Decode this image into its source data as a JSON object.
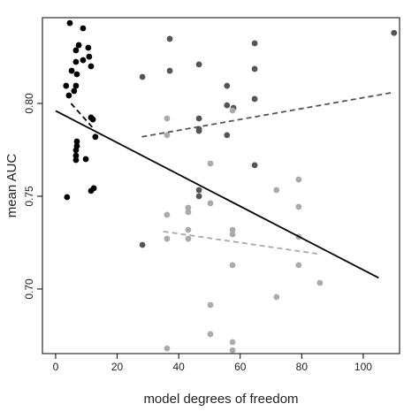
{
  "chart_data": {
    "type": "scatter",
    "x_label": "model degrees of freedom",
    "y_label": "mean AUC",
    "xlim": [
      -4.3,
      111.8
    ],
    "ylim": [
      0.6652,
      0.8462
    ],
    "xticks": [
      0,
      20,
      40,
      60,
      80,
      100
    ],
    "yticks": [
      {
        "value": 0.7,
        "label": "0.70"
      },
      0.75,
      {
        "value": 0.8,
        "label": "0.80"
      }
    ],
    "series": [
      {
        "color": "#000000",
        "x": [
          4.6,
          5.2,
          8.9,
          7.5,
          6.6,
          10.6,
          10.9,
          8.9,
          11.5,
          6.6,
          6.9,
          3.4,
          6.0,
          6.6,
          4.3,
          11.5,
          12.1,
          12.9,
          6.9,
          6.9,
          6.6,
          6.6,
          6.6,
          9.8,
          12.4,
          11.5,
          3.7
        ],
        "values": [
          0.8433,
          0.8176,
          0.8405,
          0.8314,
          0.8286,
          0.83,
          0.8252,
          0.8233,
          0.82,
          0.8224,
          0.8157,
          0.8095,
          0.8067,
          0.8095,
          0.8043,
          0.7924,
          0.7914,
          0.782,
          0.7795,
          0.7771,
          0.7748,
          0.7719,
          0.7695,
          0.77,
          0.7543,
          0.7529,
          0.7495
        ]
      },
      {
        "color": "#555555",
        "x": [
          28.2,
          37.1,
          37.1,
          46.6,
          46.6,
          46.6,
          46.6,
          46.6,
          46.6,
          55.7,
          55.7,
          55.7,
          64.7,
          64.7,
          64.7,
          64.7,
          28.2,
          110,
          57.8
        ],
        "values": [
          0.8143,
          0.8348,
          0.8176,
          0.821,
          0.7919,
          0.7862,
          0.7852,
          0.7533,
          0.75,
          0.8095,
          0.799,
          0.7829,
          0.8324,
          0.8186,
          0.8024,
          0.7667,
          0.7238,
          0.838,
          0.7976
        ]
      },
      {
        "color": "#aaaaaa",
        "x": [
          36.2,
          36.2,
          36.2,
          36.2,
          36.2,
          43.1,
          43.1,
          43.1,
          43.1,
          50.3,
          50.3,
          50.3,
          50.3,
          57.5,
          57.5,
          57.5,
          57.5,
          57.5,
          71.8,
          71.8,
          79.0,
          79.0,
          79.0,
          79.0,
          85.9,
          57.5
        ],
        "values": [
          0.7919,
          0.7829,
          0.74,
          0.7271,
          0.668,
          0.7438,
          0.7414,
          0.7319,
          0.7271,
          0.7676,
          0.7462,
          0.6914,
          0.6757,
          0.7319,
          0.7295,
          0.7129,
          0.6714,
          0.667,
          0.7533,
          0.6957,
          0.759,
          0.7443,
          0.7281,
          0.7129,
          0.7033,
          0.7962
        ]
      }
    ],
    "lines": [
      {
        "color": "#000000",
        "style": "solid",
        "x": [
          0,
          105
        ],
        "values": [
          0.796,
          0.706
        ]
      },
      {
        "color": "#000000",
        "style": "dashed",
        "x": [
          5,
          12
        ],
        "values": [
          0.8,
          0.787
        ]
      },
      {
        "color": "#555555",
        "style": "dashed",
        "x": [
          28,
          110
        ],
        "values": [
          0.782,
          0.806
        ]
      },
      {
        "color": "#aaaaaa",
        "style": "dashed",
        "x": [
          35,
          85
        ],
        "values": [
          0.731,
          0.719
        ]
      }
    ]
  }
}
